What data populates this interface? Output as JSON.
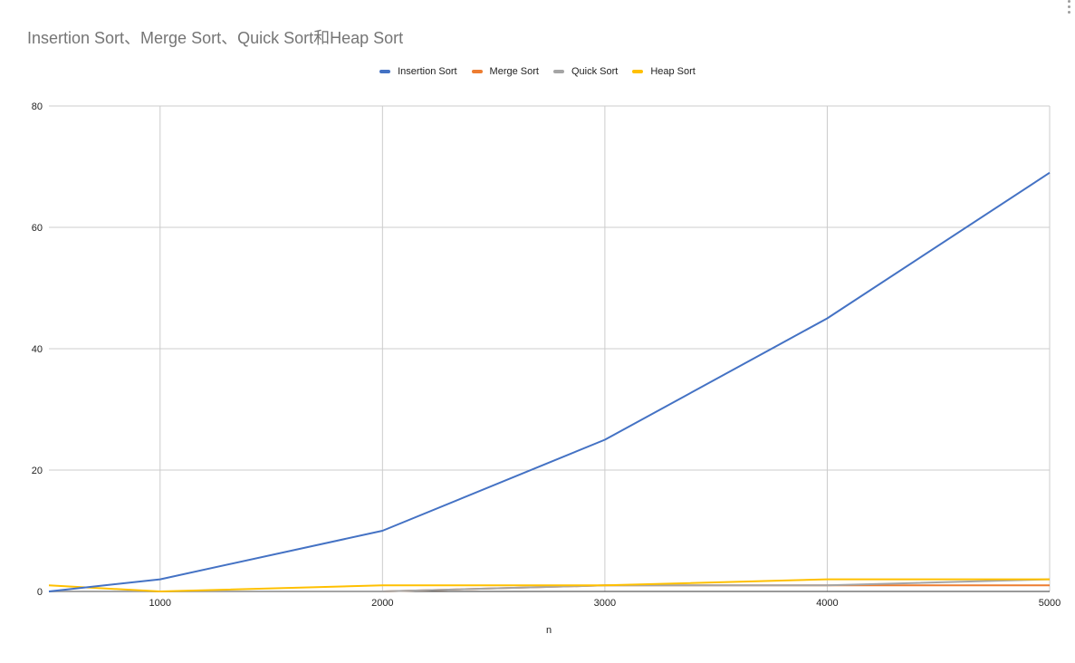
{
  "chart_data": {
    "type": "line",
    "title": "Insertion Sort、Merge Sort、Quick Sort和Heap Sort",
    "xlabel": "n",
    "ylabel": "",
    "x": [
      500,
      1000,
      2000,
      3000,
      4000,
      5000
    ],
    "xlim": [
      500,
      5000
    ],
    "ylim": [
      0,
      80
    ],
    "xticks": [
      "1000",
      "2000",
      "3000",
      "4000",
      "5000"
    ],
    "yticks": [
      "0",
      "20",
      "40",
      "60",
      "80"
    ],
    "grid": true,
    "legend_position": "top",
    "series": [
      {
        "name": "Insertion Sort",
        "color": "#4472c4",
        "values": [
          0,
          2,
          10,
          25,
          45,
          69
        ]
      },
      {
        "name": "Merge Sort",
        "color": "#ed7d31",
        "values": [
          0,
          0,
          0,
          1,
          1,
          1
        ]
      },
      {
        "name": "Quick Sort",
        "color": "#a5a5a5",
        "values": [
          0,
          0,
          0,
          1,
          1,
          2
        ]
      },
      {
        "name": "Heap Sort",
        "color": "#ffc000",
        "values": [
          1,
          0,
          1,
          1,
          2,
          2
        ]
      }
    ]
  }
}
